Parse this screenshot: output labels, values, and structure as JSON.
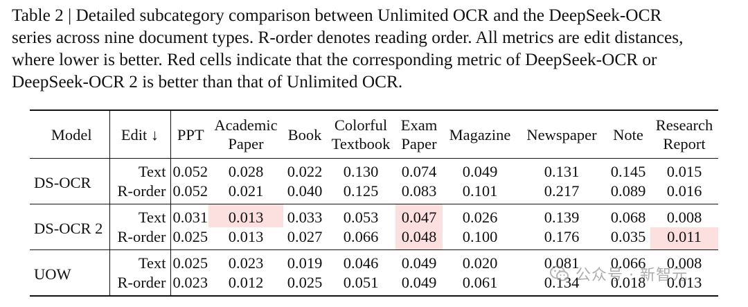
{
  "caption": {
    "lines": [
      "Table 2 | Detailed subcategory comparison between Unlimited OCR and the DeepSeek-OCR",
      "series across nine document types. R-order denotes reading order. All metrics are edit distances,",
      "where lower is better. Red cells indicate that the corresponding metric of DeepSeek-OCR or",
      "DeepSeek-OCR 2 is better than that of Unlimited OCR."
    ]
  },
  "table": {
    "headers": {
      "model": "Model",
      "edit": "Edit ↓",
      "columns": [
        [
          "PPT"
        ],
        [
          "Academic",
          "Paper"
        ],
        [
          "Book"
        ],
        [
          "Colorful",
          "Textbook"
        ],
        [
          "Exam",
          "Paper"
        ],
        [
          "Magazine"
        ],
        [
          "Newspaper"
        ],
        [
          "Note"
        ],
        [
          "Research",
          "Report"
        ]
      ]
    },
    "groups": [
      {
        "model": "DS-OCR",
        "rows": [
          {
            "edit": "Text",
            "values": [
              "0.052",
              "0.028",
              "0.022",
              "0.130",
              "0.074",
              "0.049",
              "0.131",
              "0.145",
              "0.015"
            ],
            "highlight": [
              false,
              false,
              false,
              false,
              false,
              false,
              false,
              false,
              false
            ]
          },
          {
            "edit": "R-order",
            "values": [
              "0.052",
              "0.021",
              "0.040",
              "0.125",
              "0.083",
              "0.101",
              "0.217",
              "0.089",
              "0.016"
            ],
            "highlight": [
              false,
              false,
              false,
              false,
              false,
              false,
              false,
              false,
              false
            ]
          }
        ]
      },
      {
        "model": "DS-OCR 2",
        "rows": [
          {
            "edit": "Text",
            "values": [
              "0.031",
              "0.013",
              "0.033",
              "0.053",
              "0.047",
              "0.026",
              "0.139",
              "0.068",
              "0.008"
            ],
            "highlight": [
              false,
              true,
              false,
              false,
              true,
              false,
              false,
              false,
              false
            ]
          },
          {
            "edit": "R-order",
            "values": [
              "0.025",
              "0.013",
              "0.027",
              "0.066",
              "0.048",
              "0.100",
              "0.176",
              "0.035",
              "0.011"
            ],
            "highlight": [
              false,
              false,
              false,
              false,
              true,
              false,
              false,
              false,
              true
            ]
          }
        ]
      },
      {
        "model": "UOW",
        "rows": [
          {
            "edit": "Text",
            "values": [
              "0.025",
              "0.023",
              "0.019",
              "0.046",
              "0.049",
              "0.020",
              "0.081",
              "0.066",
              "0.008"
            ],
            "highlight": [
              false,
              false,
              false,
              false,
              false,
              false,
              false,
              false,
              false
            ]
          },
          {
            "edit": "R-order",
            "values": [
              "0.023",
              "0.012",
              "0.025",
              "0.051",
              "0.049",
              "0.061",
              "0.134",
              "0.018",
              "0.013"
            ],
            "highlight": [
              false,
              false,
              false,
              false,
              false,
              false,
              false,
              false,
              false
            ]
          }
        ]
      }
    ],
    "highlight_color": "#fbe0df"
  },
  "watermark": {
    "icon": "wechat-icon",
    "text": "公众号 · 新智元"
  }
}
